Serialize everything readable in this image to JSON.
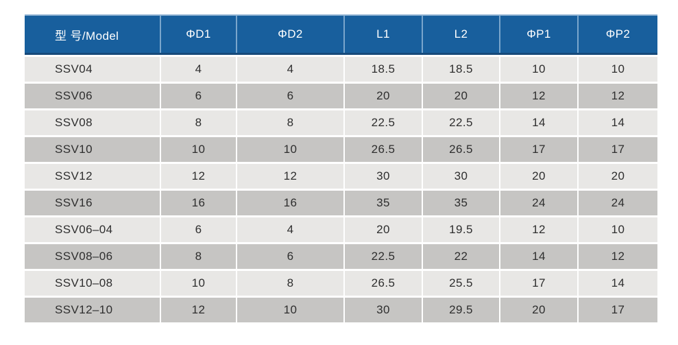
{
  "colors": {
    "header_bg": "#185f9d",
    "header_text": "#ffffff",
    "header_divider": "#7aa6cc",
    "header_top_edge": "#8fb2d2",
    "header_bottom_edge": "#16497a",
    "row_light": "#e8e7e5",
    "row_dark": "#c6c5c3",
    "body_text": "#2e2e2e",
    "cell_divider": "#ffffff"
  },
  "table": {
    "columns": [
      {
        "key": "model",
        "label": "型 号/Model"
      },
      {
        "key": "d1",
        "label": "ΦD1"
      },
      {
        "key": "d2",
        "label": "ΦD2"
      },
      {
        "key": "l1",
        "label": "L1"
      },
      {
        "key": "l2",
        "label": "L2"
      },
      {
        "key": "p1",
        "label": "ΦP1"
      },
      {
        "key": "p2",
        "label": "ΦP2"
      }
    ],
    "rows": [
      {
        "model": "SSV04",
        "d1": "4",
        "d2": "4",
        "l1": "18.5",
        "l2": "18.5",
        "p1": "10",
        "p2": "10"
      },
      {
        "model": "SSV06",
        "d1": "6",
        "d2": "6",
        "l1": "20",
        "l2": "20",
        "p1": "12",
        "p2": "12"
      },
      {
        "model": "SSV08",
        "d1": "8",
        "d2": "8",
        "l1": "22.5",
        "l2": "22.5",
        "p1": "14",
        "p2": "14"
      },
      {
        "model": "SSV10",
        "d1": "10",
        "d2": "10",
        "l1": "26.5",
        "l2": "26.5",
        "p1": "17",
        "p2": "17"
      },
      {
        "model": "SSV12",
        "d1": "12",
        "d2": "12",
        "l1": "30",
        "l2": "30",
        "p1": "20",
        "p2": "20"
      },
      {
        "model": "SSV16",
        "d1": "16",
        "d2": "16",
        "l1": "35",
        "l2": "35",
        "p1": "24",
        "p2": "24"
      },
      {
        "model": "SSV06–04",
        "d1": "6",
        "d2": "4",
        "l1": "20",
        "l2": "19.5",
        "p1": "12",
        "p2": "10"
      },
      {
        "model": "SSV08–06",
        "d1": "8",
        "d2": "6",
        "l1": "22.5",
        "l2": "22",
        "p1": "14",
        "p2": "12"
      },
      {
        "model": "SSV10–08",
        "d1": "10",
        "d2": "8",
        "l1": "26.5",
        "l2": "25.5",
        "p1": "17",
        "p2": "14"
      },
      {
        "model": "SSV12–10",
        "d1": "12",
        "d2": "10",
        "l1": "30",
        "l2": "29.5",
        "p1": "20",
        "p2": "17"
      }
    ]
  }
}
